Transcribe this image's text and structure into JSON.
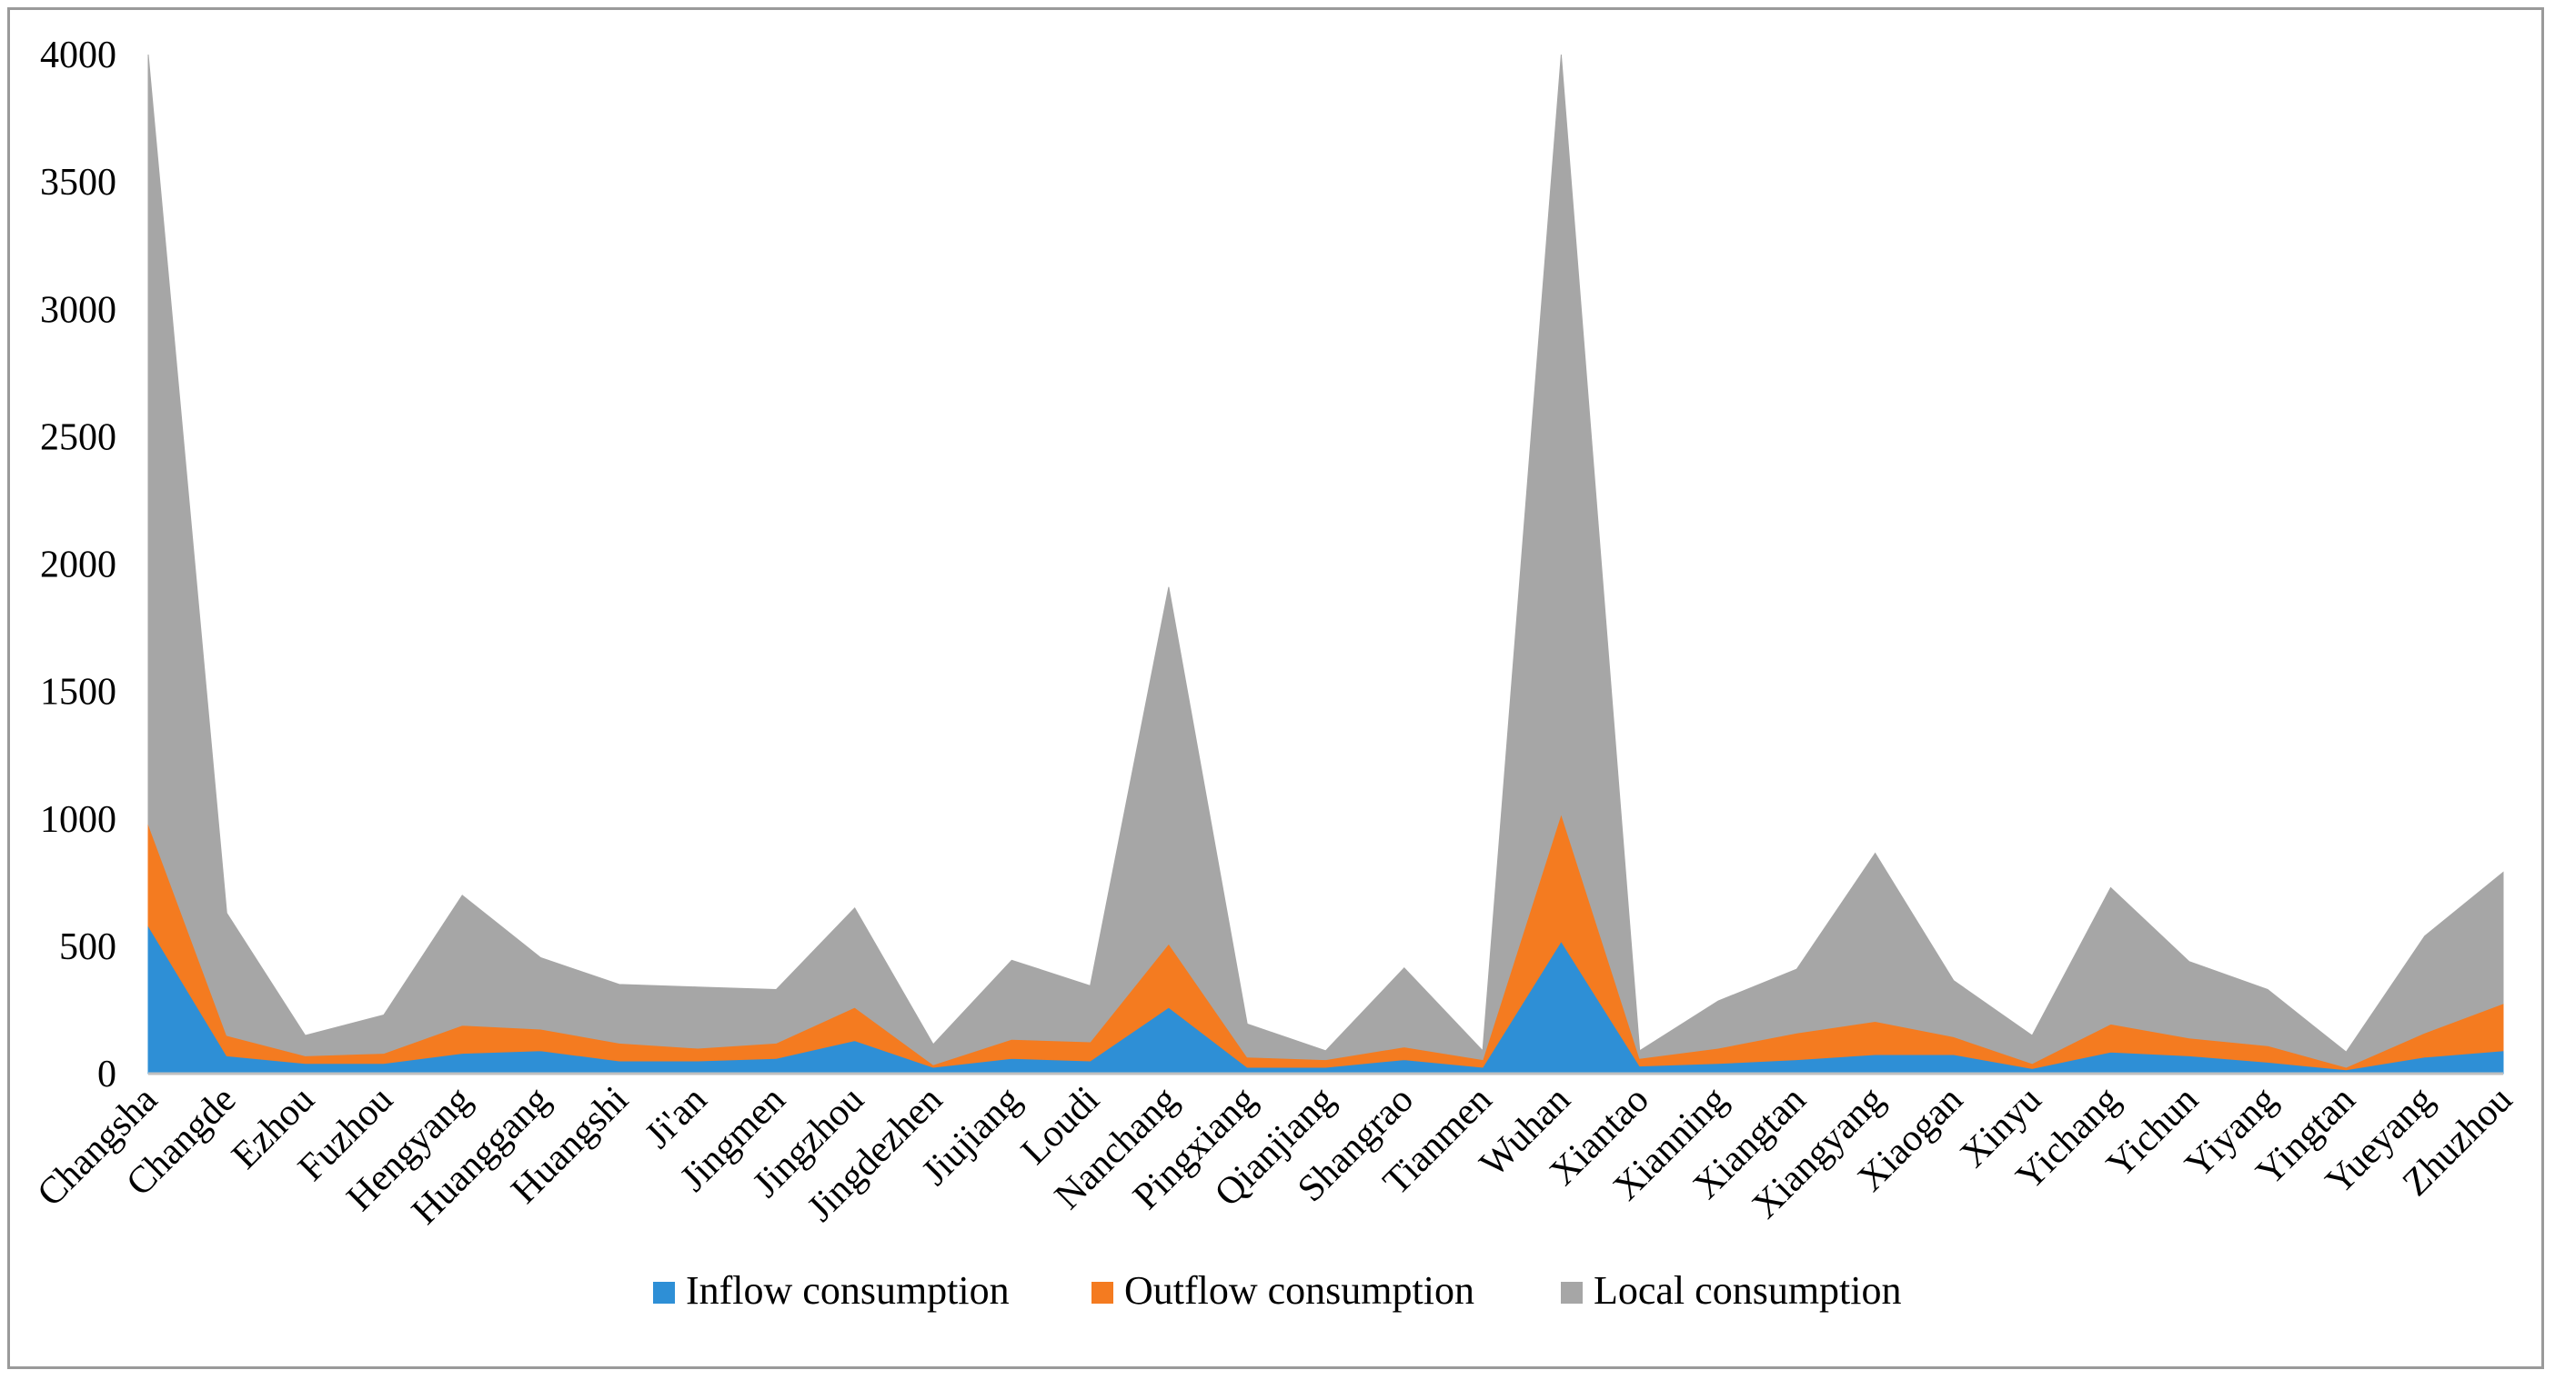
{
  "chart_data": {
    "type": "area",
    "stacked": true,
    "title": "",
    "xlabel": "",
    "ylabel": "",
    "ylim": [
      0,
      4000
    ],
    "yticks": [
      0,
      500,
      1000,
      1500,
      2000,
      2500,
      3000,
      3500,
      4000
    ],
    "grid": false,
    "legend_position": "bottom",
    "categories": [
      "Changsha",
      "Changde",
      "Ezhou",
      "Fuzhou",
      "Hengyang",
      "Huanggang",
      "Huangshi",
      "Ji'an",
      "Jingmen",
      "Jingzhou",
      "Jingdezhen",
      "Jiujiang",
      "Loudi",
      "Nanchang",
      "Pingxiang",
      "Qianjiang",
      "Shangrao",
      "Tianmen",
      "Wuhan",
      "Xiantao",
      "Xianning",
      "Xiangtan",
      "Xiangyang",
      "Xiaogan",
      "Xinyu",
      "Yichang",
      "Yichun",
      "Yiyang",
      "Yingtan",
      "Yueyang",
      "Zhuzhou"
    ],
    "series": [
      {
        "name": "Inflow consumption",
        "color": "#2E8FD6",
        "values": [
          580,
          70,
          40,
          40,
          80,
          90,
          50,
          50,
          60,
          130,
          25,
          60,
          50,
          260,
          25,
          25,
          55,
          25,
          520,
          30,
          40,
          55,
          75,
          75,
          20,
          85,
          70,
          45,
          15,
          65,
          90
        ]
      },
      {
        "name": "Outflow consumption",
        "color": "#F47B20",
        "values": [
          400,
          80,
          30,
          40,
          110,
          85,
          70,
          50,
          60,
          130,
          10,
          75,
          75,
          250,
          40,
          30,
          50,
          30,
          500,
          30,
          60,
          105,
          130,
          70,
          20,
          110,
          70,
          65,
          10,
          95,
          185
        ]
      },
      {
        "name": "Local consumption",
        "color": "#A6A6A6",
        "values": [
          3020,
          480,
          80,
          150,
          510,
          280,
          230,
          240,
          210,
          390,
          80,
          310,
          220,
          1400,
          130,
          35,
          310,
          35,
          2980,
          30,
          185,
          250,
          660,
          220,
          110,
          535,
          300,
          220,
          60,
          380,
          515
        ]
      }
    ]
  }
}
